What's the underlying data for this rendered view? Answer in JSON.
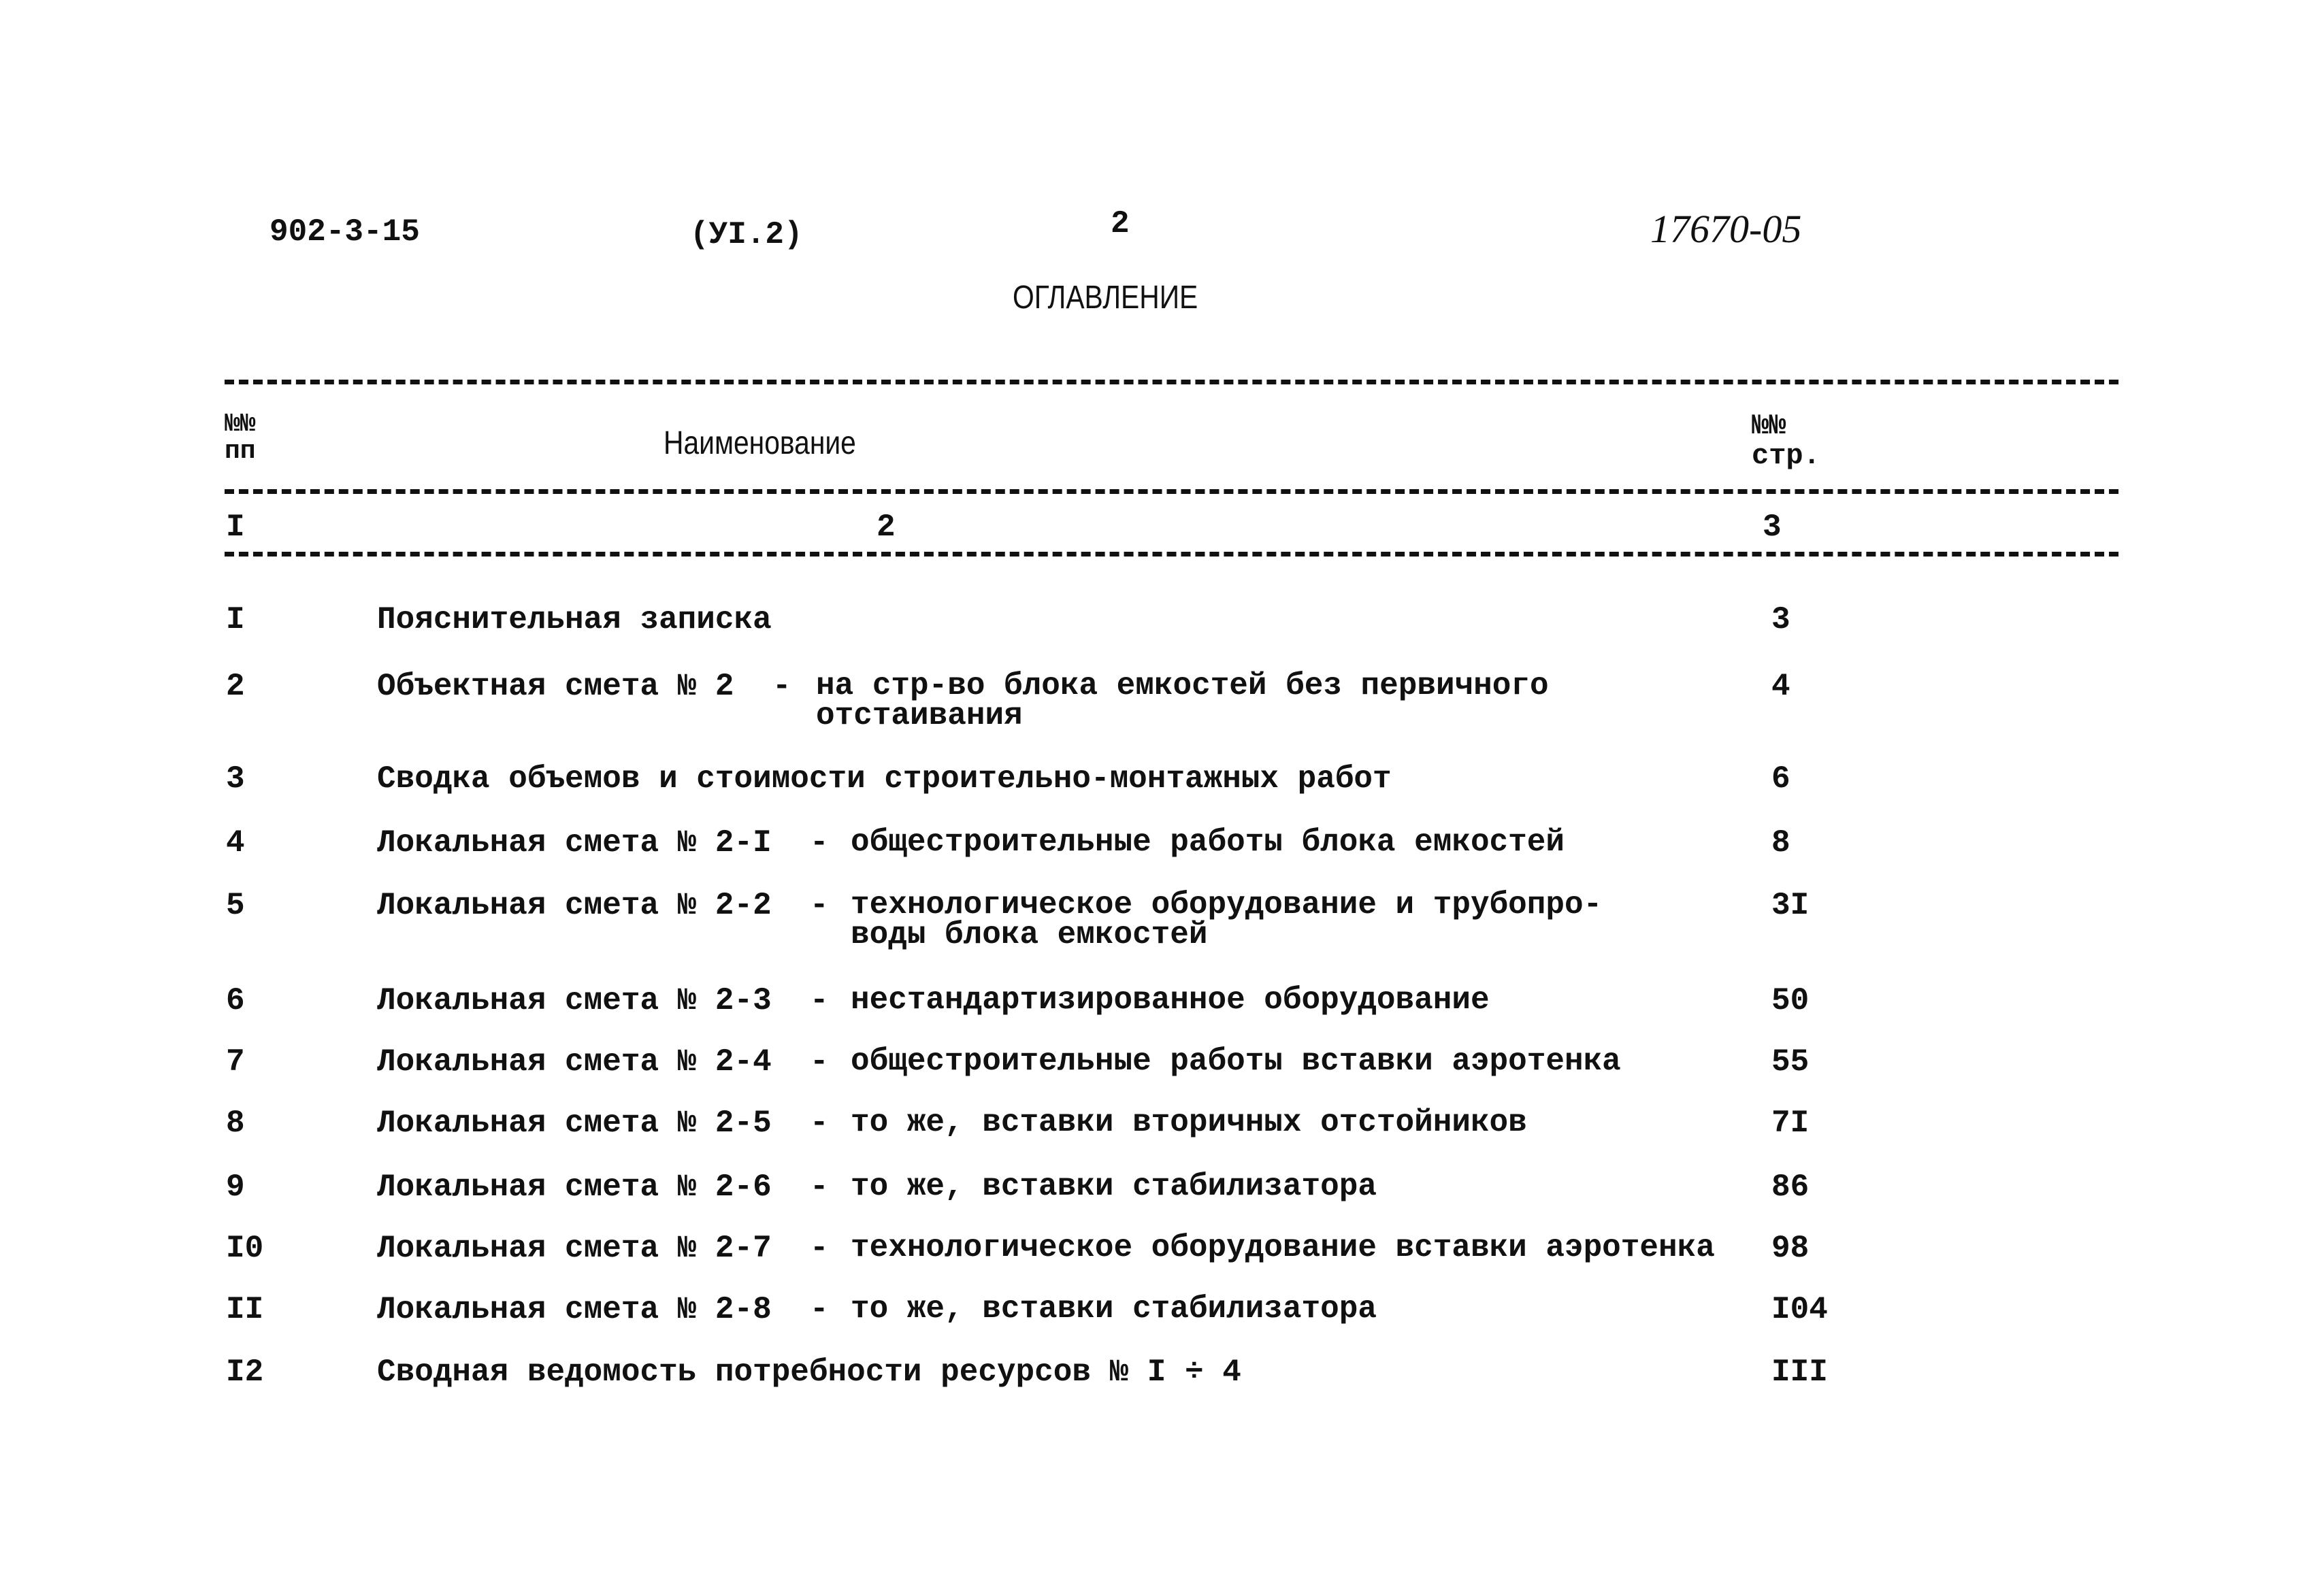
{
  "header": {
    "doc_code": "902-3-15",
    "volume": "(УI.2)",
    "page_number": "2",
    "inventory_number": "17670-05",
    "title": "ОГЛАВЛЕНИЕ"
  },
  "table": {
    "columns": [
      {
        "label": "№№\nпп",
        "index": "I"
      },
      {
        "label": "Наименование",
        "index": "2"
      },
      {
        "label": "№№\nстр.",
        "index": "3"
      }
    ],
    "rows": [
      {
        "num": "I",
        "name": "Пояснительная записка",
        "dash": "",
        "desc": "",
        "page": "3"
      },
      {
        "num": "2",
        "name": "Объектная смета № 2",
        "dash": "-",
        "desc": "на стр-во блока емкостей без первичного\nотстаивания",
        "page": "4"
      },
      {
        "num": "3",
        "name": "Сводка объемов и стоимости строительно-монтажных работ",
        "dash": "",
        "desc": "",
        "page": "6"
      },
      {
        "num": "4",
        "name": "Локальная смета № 2-I",
        "dash": "-",
        "desc": "общестроительные работы блока емкостей",
        "page": "8"
      },
      {
        "num": "5",
        "name": "Локальная смета № 2-2",
        "dash": "-",
        "desc": "технологическое оборудование и трубопро-\nводы блока емкостей",
        "page": "3I"
      },
      {
        "num": "6",
        "name": "Локальная смета № 2-3",
        "dash": "-",
        "desc": "нестандартизированное оборудование",
        "page": "50"
      },
      {
        "num": "7",
        "name": "Локальная смета № 2-4",
        "dash": "-",
        "desc": "общестроительные работы вставки аэротенка",
        "page": "55"
      },
      {
        "num": "8",
        "name": "Локальная смета № 2-5",
        "dash": "-",
        "desc": "то же, вставки вторичных отстойников",
        "page": "7I"
      },
      {
        "num": "9",
        "name": "Локальная смета № 2-6",
        "dash": "-",
        "desc": "то же, вставки стабилизатора",
        "page": "86"
      },
      {
        "num": "I0",
        "name": "Локальная смета № 2-7",
        "dash": "-",
        "desc": "технологическое оборудование вставки аэротенка",
        "page": "98"
      },
      {
        "num": "II",
        "name": "Локальная смета № 2-8",
        "dash": "-",
        "desc": "то же, вставки стабилизатора",
        "page": "I04"
      },
      {
        "num": "I2",
        "name": "Сводная ведомость потребности ресурсов № I ÷ 4",
        "dash": "",
        "desc": "",
        "page": "III"
      }
    ]
  }
}
